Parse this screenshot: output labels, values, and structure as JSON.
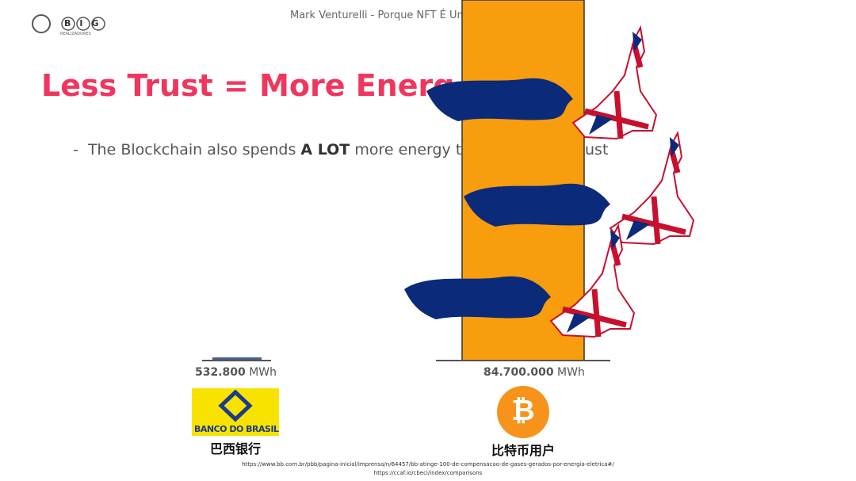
{
  "header": {
    "logo": "BIG",
    "logo_sub": "REALIZADORES",
    "presenter": "Mark Venturelli - Porque NFT É Um"
  },
  "title": "Less Trust = More Energ",
  "bullet": {
    "marker": "-",
    "text": "The Blockchain also spends",
    "emphasis": "A LOT",
    "rest": "more energy t",
    "tail": "ust"
  },
  "comparison": [
    {
      "value": "532.800",
      "unit": "MWh",
      "logo_text": "BANCO DO BRASIL",
      "label": "巴西银行"
    },
    {
      "value": "84.700.000",
      "unit": "MWh",
      "logo_text": "₿",
      "label": "比特币用户"
    }
  ],
  "footnotes": [
    "https://www.bb.com.br/pbb/pagina-inicial/imprensa/n/64457/bb-atinge-100-de-compensacao-de-gases-gerados-por-energia-eletrica#/",
    "https://ccaf.io/cbeci/index/comparisons"
  ]
}
